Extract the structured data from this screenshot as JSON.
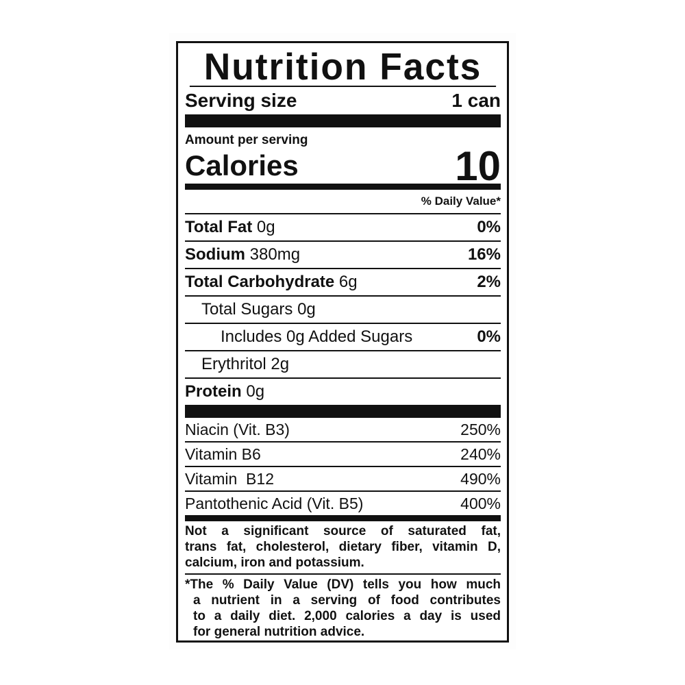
{
  "title": "Nutrition Facts",
  "serving": {
    "label": "Serving size",
    "value": "1 can"
  },
  "amount_per_serving": "Amount per serving",
  "calories": {
    "label": "Calories",
    "value": "10"
  },
  "dv_header": "% Daily Value*",
  "nutrients": [
    {
      "name": "Total Fat",
      "amount": "0g",
      "dv": "0%",
      "bold": true,
      "indent": 0
    },
    {
      "name": "Sodium",
      "amount": "380mg",
      "dv": "16%",
      "bold": true,
      "indent": 0
    },
    {
      "name": "Total Carbohydrate",
      "amount": "6g",
      "dv": "2%",
      "bold": true,
      "indent": 0
    },
    {
      "name": "Total Sugars",
      "amount": "0g",
      "dv": "",
      "bold": false,
      "indent": 1
    },
    {
      "name": "Includes 0g Added Sugars",
      "amount": "",
      "dv": "0%",
      "bold": false,
      "indent": 2
    },
    {
      "name": "Erythritol",
      "amount": "2g",
      "dv": "",
      "bold": false,
      "indent": 1
    },
    {
      "name": "Protein",
      "amount": "0g",
      "dv": "",
      "bold": true,
      "indent": 0
    }
  ],
  "vitamins": [
    {
      "name": "Niacin (Vit. B3)",
      "dv": "250%"
    },
    {
      "name": "Vitamin B6",
      "dv": "240%"
    },
    {
      "name": "Vitamin  B12",
      "dv": "490%"
    },
    {
      "name": "Pantothenic Acid (Vit. B5)",
      "dv": "400%"
    }
  ],
  "footnote_not_significant": [
    "Not a significant source of saturated fat,",
    "trans fat, cholesterol, dietary fiber, vitamin D,",
    "calcium, iron and potassium."
  ],
  "footnote_dv": [
    "*The % Daily Value (DV) tells you how much",
    "a nutrient in a serving of food contributes",
    "to a daily diet. 2,000 calories a day is used",
    "for general nutrition advice."
  ]
}
